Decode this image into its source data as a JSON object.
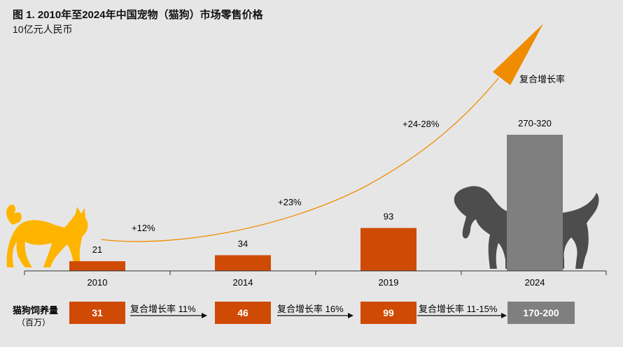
{
  "title": "图 1. 2010年至2024年中国宠物（猫狗）市场零售价格",
  "subtitle": "10亿元人民币",
  "colors": {
    "bar_historic": "#cf4a05",
    "bar_forecast": "#7f7f7f",
    "arrow": "#f08c00",
    "cat": "#ffb400",
    "dog": "#4d4d4d",
    "background": "#e6e6e6"
  },
  "chart_data": {
    "type": "bar",
    "categories": [
      "2010",
      "2014",
      "2019",
      "2024"
    ],
    "values": [
      21,
      34,
      93,
      295
    ],
    "value_labels": [
      "21",
      "34",
      "93",
      "270-320"
    ],
    "ylim": [
      0,
      320
    ],
    "grid": false,
    "growth_labels": [
      "+12%",
      "+23%",
      "+24-28%"
    ],
    "trend_label": "复合增长率"
  },
  "pets": {
    "label": "猫狗饲养量",
    "unit": "（百万）",
    "values": [
      "31",
      "46",
      "99",
      "170-200"
    ],
    "cagr_labels": [
      "复合增长率 11%",
      "复合增长率 16%",
      "复合增长率 11-15%"
    ]
  }
}
